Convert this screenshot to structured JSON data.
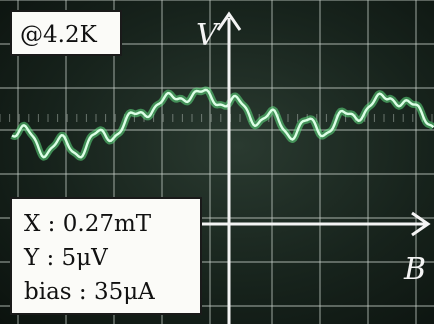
{
  "temperature_label": "@4.2K",
  "axis_labels": {
    "vertical": "V",
    "horizontal": "B"
  },
  "scale_info": {
    "x": "X : 0.27mT",
    "y": "Y : 5μV",
    "bias": "bias : 35μA"
  },
  "colors": {
    "trace": "#66f28a",
    "trace_core": "#dcffe6",
    "grid": "#c9d2cb",
    "screen": "#17231c"
  }
}
